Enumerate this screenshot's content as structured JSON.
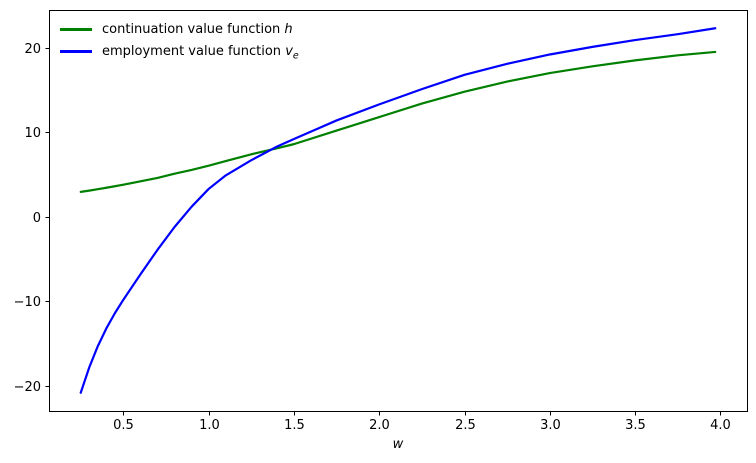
{
  "chart_data": {
    "type": "line",
    "title": "",
    "xlabel": "w",
    "ylabel": "",
    "grid": false,
    "legend_position": "upper left",
    "legend_frame": false,
    "xlim": [
      0.064,
      4.156
    ],
    "ylim": [
      -22.96,
      24.46
    ],
    "xticks": [
      {
        "v": 0.5,
        "label": "0.5"
      },
      {
        "v": 1.0,
        "label": "1.0"
      },
      {
        "v": 1.5,
        "label": "1.5"
      },
      {
        "v": 2.0,
        "label": "2.0"
      },
      {
        "v": 2.5,
        "label": "2.5"
      },
      {
        "v": 3.0,
        "label": "3.0"
      },
      {
        "v": 3.5,
        "label": "3.5"
      },
      {
        "v": 4.0,
        "label": "4.0"
      }
    ],
    "yticks": [
      {
        "v": -20,
        "label": "−20"
      },
      {
        "v": -10,
        "label": "−10"
      },
      {
        "v": 0,
        "label": "0"
      },
      {
        "v": 10,
        "label": "10"
      },
      {
        "v": 20,
        "label": "20"
      }
    ],
    "x": [
      0.25,
      0.3,
      0.35,
      0.4,
      0.45,
      0.5,
      0.6,
      0.7,
      0.8,
      0.9,
      1.0,
      1.1,
      1.25,
      1.4,
      1.5,
      1.75,
      2.0,
      2.25,
      2.5,
      2.75,
      3.0,
      3.25,
      3.5,
      3.75,
      3.97
    ],
    "series": [
      {
        "id": "continuation-value-h",
        "legend_prefix": "continuation value function ",
        "legend_math": "h",
        "legend_sub": "",
        "color": "#008000",
        "line_width": 2.2,
        "values": [
          2.95,
          3.1,
          3.27,
          3.44,
          3.62,
          3.8,
          4.2,
          4.6,
          5.1,
          5.55,
          6.05,
          6.6,
          7.4,
          8.1,
          8.6,
          10.2,
          11.8,
          13.4,
          14.8,
          16.0,
          17.0,
          17.8,
          18.5,
          19.1,
          19.5
        ]
      },
      {
        "id": "employment-value-ve",
        "legend_prefix": "employment value function ",
        "legend_math": "v",
        "legend_sub": "e",
        "color": "#0000ff",
        "line_width": 2.2,
        "values": [
          -20.8,
          -17.8,
          -15.3,
          -13.2,
          -11.4,
          -9.8,
          -6.8,
          -3.9,
          -1.2,
          1.2,
          3.3,
          4.9,
          6.7,
          8.3,
          9.2,
          11.4,
          13.3,
          15.1,
          16.8,
          18.1,
          19.2,
          20.1,
          20.9,
          21.6,
          22.3
        ]
      }
    ]
  }
}
